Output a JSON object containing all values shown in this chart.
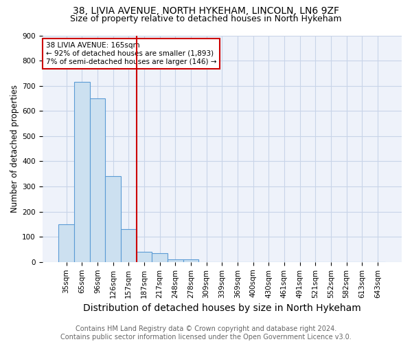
{
  "title1": "38, LIVIA AVENUE, NORTH HYKEHAM, LINCOLN, LN6 9ZF",
  "title2": "Size of property relative to detached houses in North Hykeham",
  "xlabel": "Distribution of detached houses by size in North Hykeham",
  "ylabel": "Number of detached properties",
  "footer1": "Contains HM Land Registry data © Crown copyright and database right 2024.",
  "footer2": "Contains public sector information licensed under the Open Government Licence v3.0.",
  "categories": [
    "35sqm",
    "65sqm",
    "96sqm",
    "126sqm",
    "157sqm",
    "187sqm",
    "217sqm",
    "248sqm",
    "278sqm",
    "309sqm",
    "339sqm",
    "369sqm",
    "400sqm",
    "430sqm",
    "461sqm",
    "491sqm",
    "521sqm",
    "552sqm",
    "582sqm",
    "613sqm",
    "643sqm"
  ],
  "values": [
    150,
    715,
    650,
    340,
    130,
    40,
    35,
    10,
    10,
    0,
    0,
    0,
    0,
    0,
    0,
    0,
    0,
    0,
    0,
    0,
    0
  ],
  "bar_color": "#cce0f0",
  "bar_edge_color": "#5b9bd5",
  "vline_color": "#cc0000",
  "annotation_line1": "38 LIVIA AVENUE: 165sqm",
  "annotation_line2": "← 92% of detached houses are smaller (1,893)",
  "annotation_line3": "7% of semi-detached houses are larger (146) →",
  "annotation_box_color": "#cc0000",
  "ylim": [
    0,
    900
  ],
  "yticks": [
    0,
    100,
    200,
    300,
    400,
    500,
    600,
    700,
    800,
    900
  ],
  "grid_color": "#c8d4e8",
  "bg_color": "#eef2fa",
  "title1_fontsize": 10,
  "title2_fontsize": 9,
  "xlabel_fontsize": 10,
  "ylabel_fontsize": 8.5,
  "tick_fontsize": 7.5,
  "footer_fontsize": 7,
  "vline_bin_index": 4
}
